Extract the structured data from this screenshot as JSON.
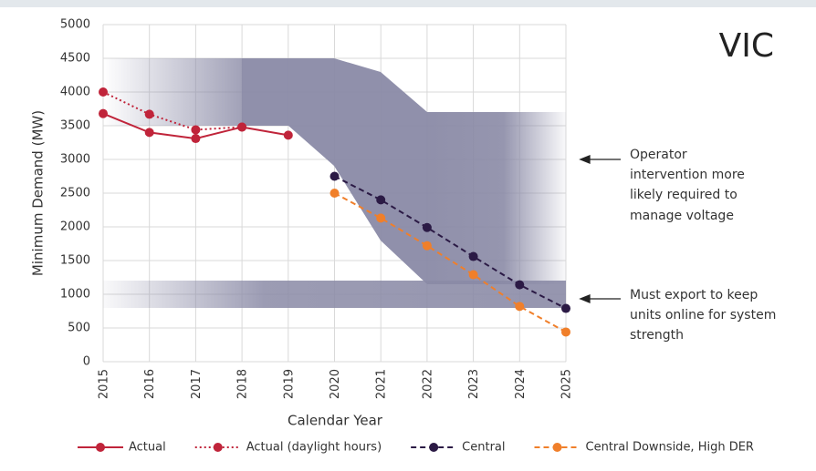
{
  "chart_data": {
    "type": "line",
    "title": "VIC",
    "x_label": "Calendar Year",
    "y_label": "Minimum Demand (MW)",
    "categories": [
      "2015",
      "2016",
      "2017",
      "2018",
      "2019",
      "2020",
      "2021",
      "2022",
      "2023",
      "2024",
      "2025"
    ],
    "series": [
      {
        "name": "Actual",
        "color": "#c0243a",
        "linestyle": "solid",
        "values": [
          3680,
          3400,
          3310,
          3480,
          3360,
          null,
          null,
          null,
          null,
          null,
          null
        ]
      },
      {
        "name": "Actual (daylight hours)",
        "color": "#c0243a",
        "linestyle": "dotted",
        "values": [
          4000,
          3670,
          3440,
          3480,
          null,
          null,
          null,
          null,
          null,
          null,
          null
        ]
      },
      {
        "name": "Central",
        "color": "#2b1a45",
        "linestyle": "dashed",
        "values": [
          null,
          null,
          null,
          null,
          null,
          2750,
          2400,
          1990,
          1560,
          1140,
          790
        ]
      },
      {
        "name": "Central Downside, High DER",
        "color": "#f07f2a",
        "linestyle": "dashed",
        "values": [
          null,
          null,
          null,
          null,
          null,
          2500,
          2130,
          1720,
          1290,
          820,
          440
        ]
      }
    ],
    "ylim": [
      0,
      5000
    ],
    "yticks": [
      0,
      500,
      1000,
      1500,
      2000,
      2500,
      3000,
      3500,
      4000,
      4500,
      5000
    ],
    "grid": true,
    "legend": "bottom",
    "annotations": [
      {
        "lines": [
          "Operator",
          "intervention more",
          "likely required to",
          "manage voltage"
        ]
      },
      {
        "lines": [
          "Must export to keep",
          "units online for system",
          "strength"
        ]
      }
    ]
  }
}
